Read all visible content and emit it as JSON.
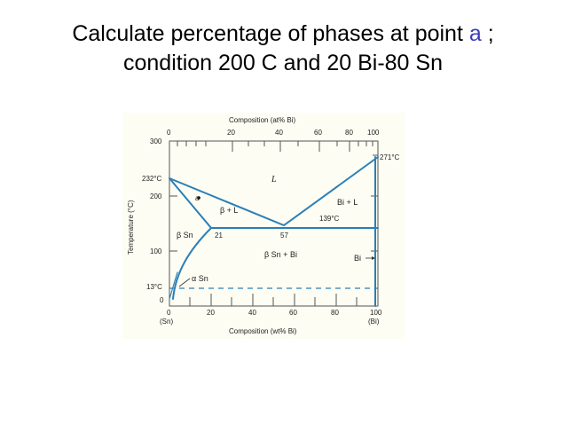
{
  "title": {
    "line1_a": "Calculate percentage of phases at point ",
    "line1_point": "a",
    "line1_b": " ;",
    "line2": "condition 200 C and 20 Bi-80 Sn"
  },
  "diagram": {
    "top_axis_label": "Composition (at% Bi)",
    "top_ticks": [
      "0",
      "20",
      "40",
      "60",
      "80",
      "100"
    ],
    "bottom_axis_label": "Composition (wt% Bi)",
    "bottom_ticks": [
      "0",
      "20",
      "40",
      "60",
      "80",
      "100"
    ],
    "bottom_ends": [
      "(Sn)",
      "(Bi)"
    ],
    "y_axis_label": "Temperature (°C)",
    "y_ticks": [
      "300",
      "200",
      "100",
      "0"
    ],
    "temp_marks": {
      "sn_melt": "232°C",
      "bi_melt": "271°C",
      "eutectic": "139°C",
      "allotropic": "13°C"
    },
    "compositions": {
      "sn_solubility": "21",
      "eutectic": "57"
    },
    "phase_labels": {
      "liquid": "L",
      "beta_l": "β + L",
      "bi_l": "Bi + L",
      "beta_sn": "β Sn",
      "beta_sn_bi": "β Sn + Bi",
      "bi": "Bi",
      "alpha_sn": "α Sn"
    },
    "point_label": "a",
    "colors": {
      "line": "#2a7fb8",
      "dashed": "#2a7fb8",
      "background": "#fdfdf3"
    }
  }
}
